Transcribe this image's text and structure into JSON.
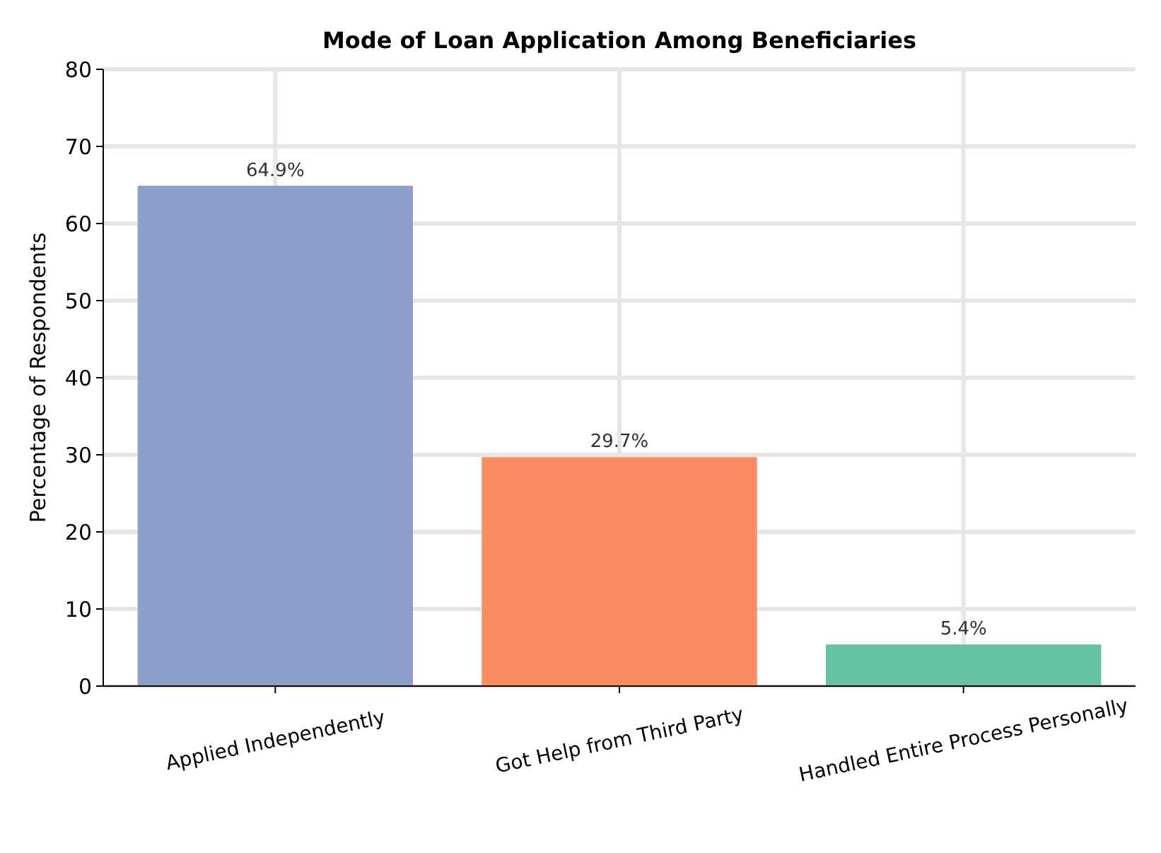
{
  "chart_data": {
    "type": "bar",
    "title": "Mode of Loan Application Among Beneficiaries",
    "ylabel": "Percentage of Respondents",
    "categories": [
      "Applied Independently",
      "Got Help from Third Party",
      "Handled Entire Process Personally"
    ],
    "values": [
      64.9,
      29.7,
      5.4
    ],
    "colors": [
      "#8da0cb",
      "#fc8d62",
      "#66c2a5"
    ],
    "value_labels": [
      "64.9%",
      "29.7%",
      "5.4%"
    ],
    "ylim": [
      0,
      80
    ],
    "yticks": [
      0,
      10,
      20,
      30,
      40,
      50,
      60,
      70,
      80
    ],
    "grid": true
  }
}
